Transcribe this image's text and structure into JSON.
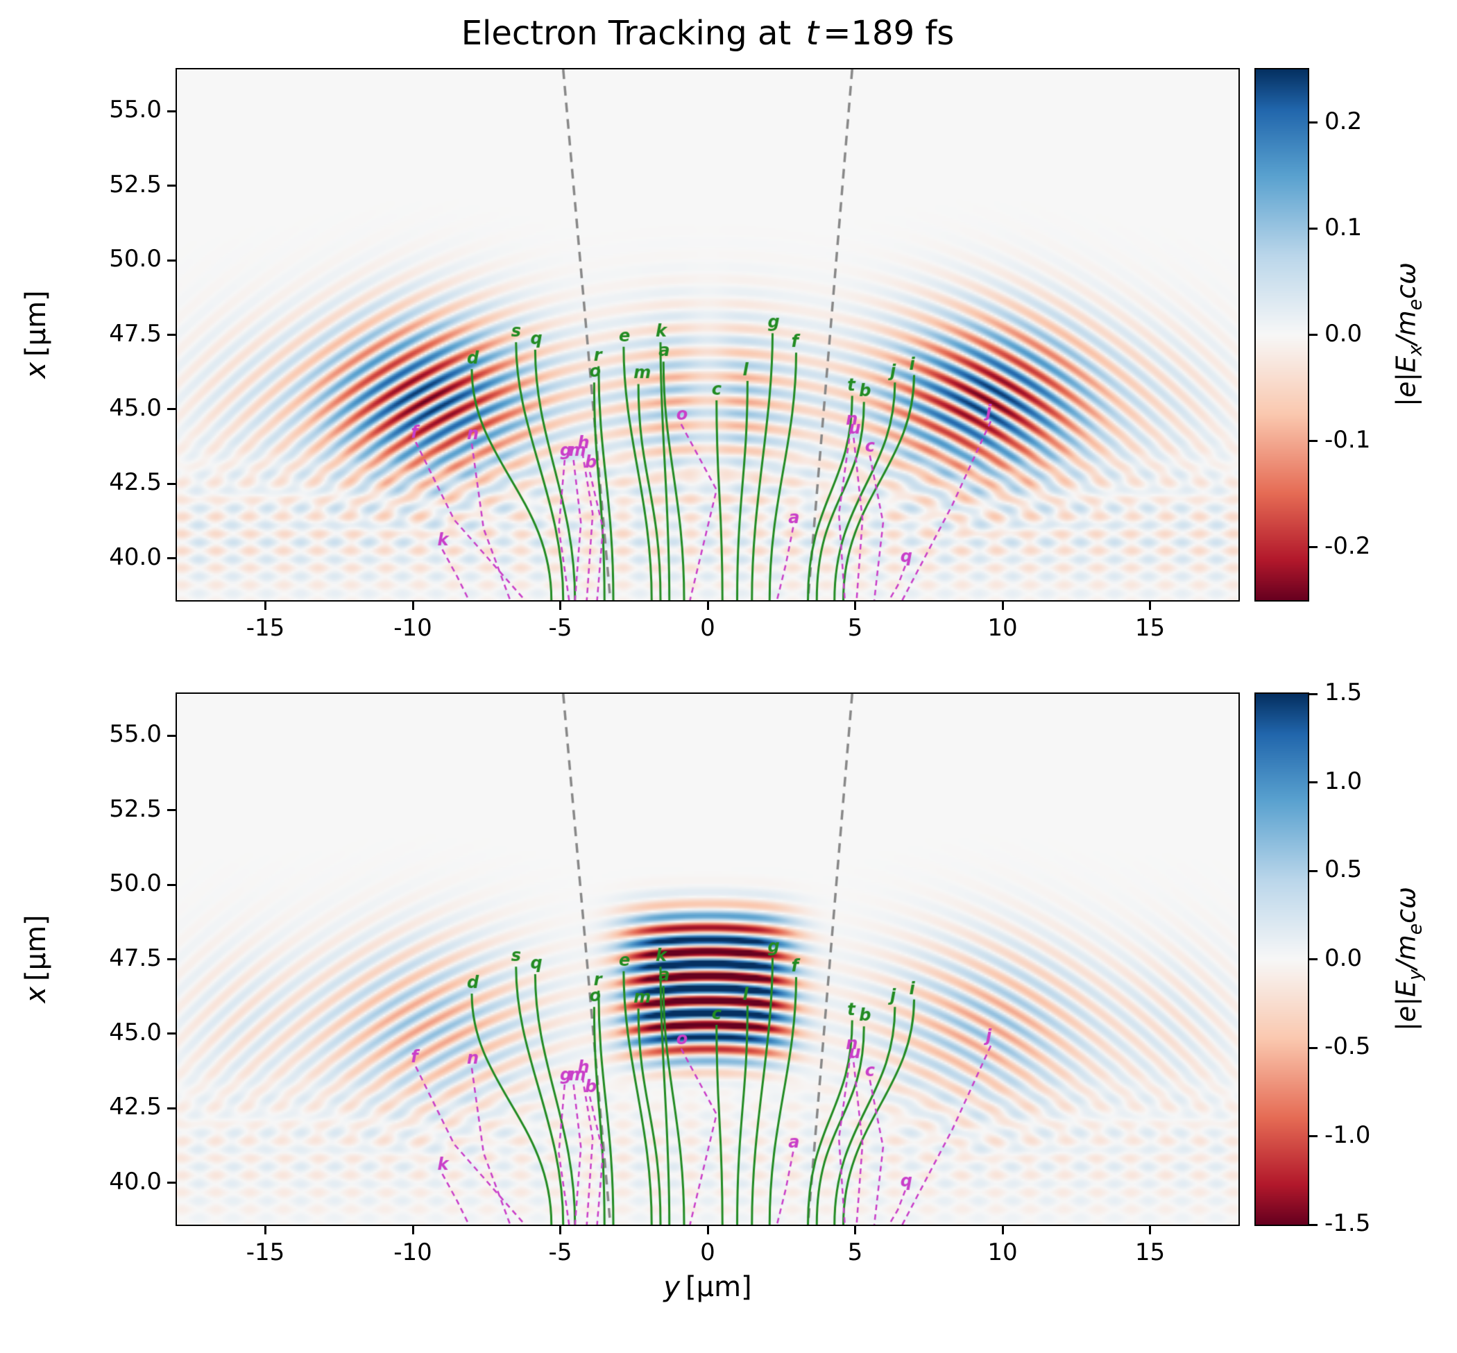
{
  "title": {
    "pre": "Electron Tracking at ",
    "var": "t",
    "post": "=189 fs"
  },
  "figure": {
    "bg": "#ffffff",
    "plot_bg": "#f7f7f7",
    "axis_color": "#000000",
    "cone_color": "#888888",
    "traj_green": "#228b22",
    "traj_magenta": "#c93ec9"
  },
  "chart_data": [
    {
      "type": "heatmap",
      "id": "Ex-field-map",
      "ylabel": {
        "var": "x",
        "unit": "[μm]"
      },
      "xlim": [
        -18,
        18
      ],
      "ylim": [
        38.6,
        56.4
      ],
      "xtick_vals": [
        -15,
        -10,
        -5,
        0,
        5,
        10,
        15
      ],
      "xtick_labels": [
        "-15",
        "-10",
        "-5",
        "0",
        "5",
        "10",
        "15"
      ],
      "ytick_vals": [
        40.0,
        42.5,
        45.0,
        47.5,
        50.0,
        52.5,
        55.0
      ],
      "ytick_labels": [
        "40.0",
        "42.5",
        "45.0",
        "47.5",
        "50.0",
        "52.5",
        "55.0"
      ],
      "grid": false,
      "colorbar": {
        "vmin": -0.25,
        "vmax": 0.25,
        "tick_vals": [
          0.2,
          0.1,
          0.0,
          -0.1,
          -0.2
        ],
        "tick_labels": [
          "0.2",
          "0.1",
          "0.0",
          "-0.1",
          "-0.2"
        ],
        "label": {
          "pre": "|e|E",
          "sub": "x",
          "mid": "/m",
          "sub2": "e",
          "post": "cω"
        }
      },
      "cone": [
        [
          [
            -4.9,
            56.4
          ],
          [
            -3.3,
            38.6
          ]
        ],
        [
          [
            4.9,
            56.4
          ],
          [
            3.4,
            38.6
          ]
        ]
      ],
      "field": {
        "kind": "ex",
        "wavelength": 0.82,
        "focus_x": 25,
        "y_scale": 1.08,
        "env_x": 45.3,
        "env_sx": 2.7,
        "lobe_y": 9.5,
        "lobe_s": 3.8,
        "center_amp": 0.5,
        "center_s": 3.0,
        "edge_amp": 0.12,
        "hatch_amp": 0.05,
        "peak": 0.25
      }
    },
    {
      "type": "heatmap",
      "id": "Ey-field-map",
      "xlabel": {
        "var": "y",
        "unit": "[μm]"
      },
      "ylabel": {
        "var": "x",
        "unit": "[μm]"
      },
      "xlim": [
        -18,
        18
      ],
      "ylim": [
        38.6,
        56.4
      ],
      "xtick_vals": [
        -15,
        -10,
        -5,
        0,
        5,
        10,
        15
      ],
      "xtick_labels": [
        "-15",
        "-10",
        "-5",
        "0",
        "5",
        "10",
        "15"
      ],
      "ytick_vals": [
        40.0,
        42.5,
        45.0,
        47.5,
        50.0,
        52.5,
        55.0
      ],
      "ytick_labels": [
        "40.0",
        "42.5",
        "45.0",
        "47.5",
        "50.0",
        "52.5",
        "55.0"
      ],
      "grid": false,
      "colorbar": {
        "vmin": -1.5,
        "vmax": 1.5,
        "tick_vals": [
          1.5,
          1.0,
          0.5,
          0.0,
          -0.5,
          -1.0,
          -1.5
        ],
        "tick_labels": [
          "1.5",
          "1.0",
          "0.5",
          "0.0",
          "-0.5",
          "-1.0",
          "-1.5"
        ],
        "label": {
          "pre": "|e|E",
          "sub": "y",
          "mid": "/m",
          "sub2": "e",
          "post": "cω"
        }
      },
      "cone": [
        [
          [
            -4.9,
            56.4
          ],
          [
            -3.3,
            38.6
          ]
        ],
        [
          [
            4.9,
            56.4
          ],
          [
            3.4,
            38.6
          ]
        ]
      ],
      "field": {
        "kind": "ey",
        "wavelength": 0.82,
        "focus_x": 25,
        "y_scale": 1.08,
        "central_amp": 2.0,
        "central_sy": 2.9,
        "central_x": 46.6,
        "central_sx": 2.5,
        "side_env_x": 45.2,
        "side_env_sx": 2.8,
        "side_amp": 0.65,
        "lobe_y": 9.5,
        "lobe_s": 3.8,
        "edge_amp": 0.3,
        "hatch_amp": 0.18,
        "peak": 1.5
      }
    }
  ],
  "trajectories": {
    "green": [
      {
        "label": "d",
        "tip": [
          -8.0,
          46.35
        ],
        "start": -5.3
      },
      {
        "label": "s",
        "tip": [
          -6.5,
          47.25
        ],
        "start": -4.9
      },
      {
        "label": "q",
        "tip": [
          -5.85,
          47.0
        ],
        "start": -4.5
      },
      {
        "label": "r",
        "tip": [
          -3.7,
          46.45
        ],
        "start": -3.2
      },
      {
        "label": "o",
        "tip": [
          -3.85,
          45.9
        ],
        "start": -3.5
      },
      {
        "label": "e",
        "tip": [
          -2.85,
          47.1
        ],
        "start": -1.9
      },
      {
        "label": "k",
        "tip": [
          -1.6,
          47.25
        ],
        "start": -1.3
      },
      {
        "label": "a",
        "tip": [
          -1.5,
          46.6
        ],
        "start": -0.8
      },
      {
        "label": "m",
        "tip": [
          -2.35,
          45.85
        ],
        "start": -1.6
      },
      {
        "label": "c",
        "tip": [
          0.3,
          45.3
        ],
        "start": 0.5
      },
      {
        "label": "l",
        "tip": [
          1.35,
          45.95
        ],
        "start": 1.0
      },
      {
        "label": "g",
        "tip": [
          2.2,
          47.55
        ],
        "start": 1.5
      },
      {
        "label": "f",
        "tip": [
          3.0,
          46.9
        ],
        "start": 2.1
      },
      {
        "label": "t",
        "tip": [
          4.9,
          45.45
        ],
        "start": 3.4
      },
      {
        "label": "b",
        "tip": [
          5.3,
          45.25
        ],
        "start": 3.7
      },
      {
        "label": "j",
        "tip": [
          6.35,
          45.9
        ],
        "start": 4.3
      },
      {
        "label": "i",
        "tip": [
          7.0,
          46.15
        ],
        "start": 4.6
      }
    ],
    "magenta": [
      {
        "label": "f",
        "pts": [
          [
            -9.9,
            43.9
          ],
          [
            -8.6,
            41.3
          ],
          [
            -6.2,
            38.6
          ]
        ]
      },
      {
        "label": "n",
        "pts": [
          [
            -8.0,
            43.85
          ],
          [
            -7.6,
            41.0
          ],
          [
            -6.7,
            38.6
          ]
        ]
      },
      {
        "label": "k",
        "pts": [
          [
            -9.0,
            40.3
          ],
          [
            -8.5,
            39.4
          ],
          [
            -8.1,
            38.6
          ]
        ]
      },
      {
        "label": "g",
        "pts": [
          [
            -4.85,
            43.3
          ],
          [
            -5.05,
            41.0
          ],
          [
            -4.7,
            38.6
          ]
        ]
      },
      {
        "label": "m",
        "pts": [
          [
            -4.55,
            43.3
          ],
          [
            -4.3,
            41.2
          ],
          [
            -4.5,
            38.6
          ]
        ]
      },
      {
        "label": "h",
        "pts": [
          [
            -4.25,
            43.55
          ],
          [
            -3.9,
            41.5
          ],
          [
            -4.1,
            38.6
          ]
        ]
      },
      {
        "label": "b",
        "pts": [
          [
            -4.0,
            42.9
          ],
          [
            -3.55,
            41.0
          ],
          [
            -3.75,
            38.6
          ]
        ]
      },
      {
        "label": "o",
        "pts": [
          [
            -0.9,
            44.5
          ],
          [
            0.3,
            42.3
          ],
          [
            -0.6,
            38.6
          ]
        ]
      },
      {
        "label": "a",
        "pts": [
          [
            2.9,
            41.05
          ],
          [
            2.65,
            39.8
          ],
          [
            2.35,
            38.6
          ]
        ]
      },
      {
        "label": "n",
        "pts": [
          [
            4.85,
            44.35
          ],
          [
            4.45,
            41.5
          ],
          [
            4.65,
            38.6
          ]
        ]
      },
      {
        "label": "u",
        "pts": [
          [
            4.95,
            44.05
          ],
          [
            5.25,
            41.3
          ],
          [
            5.05,
            38.6
          ]
        ]
      },
      {
        "label": "c",
        "pts": [
          [
            5.5,
            43.45
          ],
          [
            5.95,
            41.2
          ],
          [
            5.65,
            38.6
          ]
        ]
      },
      {
        "label": "q",
        "pts": [
          [
            6.7,
            39.75
          ],
          [
            6.45,
            39.1
          ],
          [
            6.15,
            38.6
          ]
        ]
      },
      {
        "label": "j",
        "pts": [
          [
            9.6,
            44.6
          ],
          [
            8.3,
            41.8
          ],
          [
            6.6,
            38.6
          ]
        ]
      }
    ]
  }
}
